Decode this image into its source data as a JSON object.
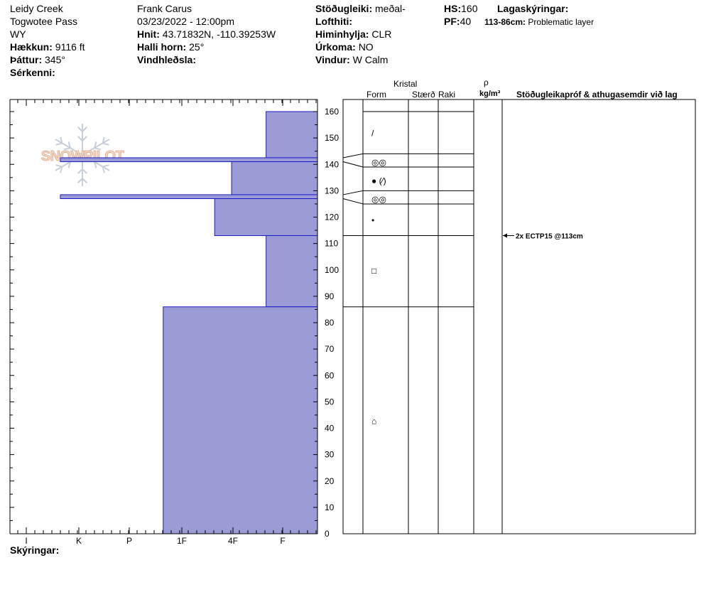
{
  "header": {
    "col1": {
      "site": "Leidy Creek",
      "location": "Togwotee Pass",
      "state": "WY",
      "elevation_label": "Hækkun:",
      "elevation_value": "9116 ft",
      "aspect_label": "Þáttur:",
      "aspect_value": "345°",
      "specifics_label": "Sérkenni:"
    },
    "col2": {
      "observer": "Frank  Carus",
      "datetime": "03/23/2022 - 12:00pm",
      "coords_label": "Hnit:",
      "coords_value": "43.71832N, -110.39253W",
      "slope_label": "Halli horn:",
      "slope_value": "25°",
      "wind_loading_label": "Vindhleðsla:"
    },
    "col3": {
      "stability_label": "Stöðugleiki:",
      "stability_value": "meðal-",
      "air_temp_label": "Lofthiti:",
      "sky_label": "Himinhylja:",
      "sky_value": "CLR",
      "precip_label": "Úrkoma:",
      "precip_value": "NO",
      "wind_label": "Vindur:",
      "wind_value": "W Calm"
    },
    "col4": {
      "hs_label": "HS:",
      "hs_value": "160",
      "pf_label": "PF:",
      "pf_value": "40",
      "layer_notes_label": "Lagaskýringar:",
      "layer_note_range": "113-86cm:",
      "layer_note_text": "Problematic layer"
    }
  },
  "table_headers": {
    "crystal": "Kristal",
    "form": "Form",
    "size": "Stærð",
    "moisture": "Raki",
    "rho": "ρ",
    "density_unit": "kg/m³",
    "tests": "Stöðugleikapróf & athugasemdir við lag"
  },
  "logo_text": "SNOWPILOT",
  "legend_label": "Skýringar:",
  "colors": {
    "fill": "#9b9bd6",
    "edge": "#1a1acc"
  },
  "chart_data": {
    "type": "bar",
    "orientation": "horizontal",
    "description_axis_y": "snow height (cm)",
    "ylim": [
      0,
      160
    ],
    "y_ticks": [
      0,
      10,
      20,
      30,
      40,
      50,
      60,
      70,
      80,
      90,
      100,
      110,
      120,
      130,
      140,
      150,
      160
    ],
    "x_categories": [
      "I",
      "K",
      "P",
      "1F",
      "4F",
      "F"
    ],
    "hardness_scale_max": 6,
    "layers": [
      {
        "top": 160,
        "bottom": 142.5,
        "hardness": "F",
        "hardness_value": 1
      },
      {
        "top": 142.5,
        "bottom": 141,
        "hardness": "K",
        "hardness_value": 5
      },
      {
        "top": 141,
        "bottom": 128.5,
        "hardness": "4F-",
        "hardness_value": 1.67
      },
      {
        "top": 128.5,
        "bottom": 127,
        "hardness": "K",
        "hardness_value": 5
      },
      {
        "top": 127,
        "bottom": 113,
        "hardness": "4F",
        "hardness_value": 2
      },
      {
        "top": 113,
        "bottom": 86,
        "hardness": "F",
        "hardness_value": 1
      },
      {
        "top": 86,
        "bottom": 0,
        "hardness": "1F",
        "hardness_value": 3
      }
    ],
    "crystal_layer_boundaries": [
      160,
      144,
      139,
      130,
      125,
      113,
      86,
      0
    ],
    "crystal_forms": [
      {
        "height": 152,
        "symbol": "/"
      },
      {
        "height": 141,
        "symbol": "◎◎"
      },
      {
        "height": 134,
        "symbol": "● (⁄)"
      },
      {
        "height": 127,
        "symbol": "◎◎"
      },
      {
        "height": 119,
        "symbol": "•"
      },
      {
        "height": 100,
        "symbol": "□"
      },
      {
        "height": 43,
        "symbol": "⌂"
      }
    ],
    "stability_tests": [
      {
        "height": 113,
        "text": "2x ECTP15 @113cm"
      }
    ]
  }
}
